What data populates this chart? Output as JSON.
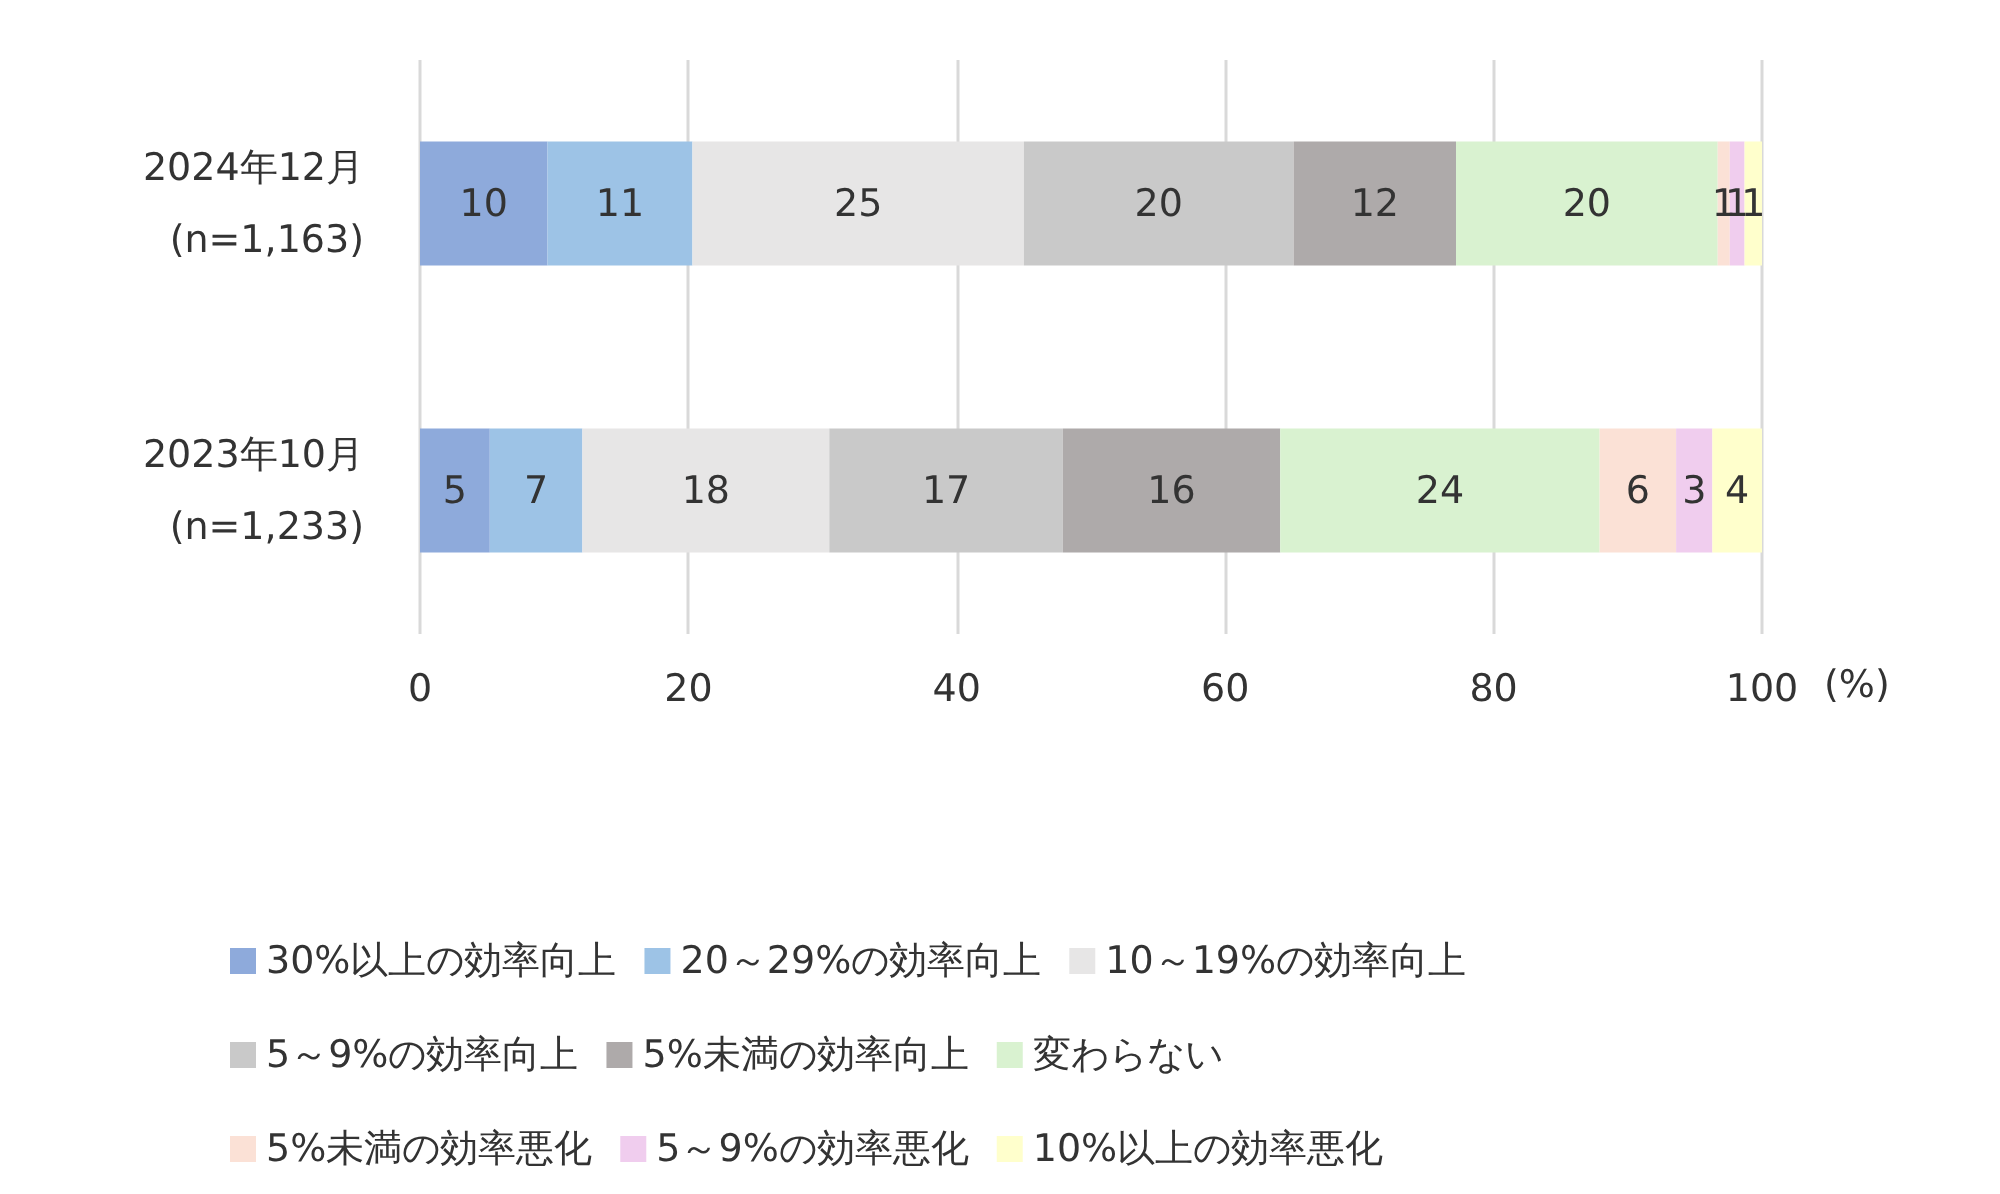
{
  "chart_data": {
    "type": "bar",
    "orientation": "horizontal",
    "stacked": true,
    "categories": [
      "2024年12月\n(n=1,163)",
      "2023年10月\n(n=1,233)"
    ],
    "xlabel": "(%)",
    "xlim": [
      0,
      100
    ],
    "xticks": [
      0,
      20,
      40,
      60,
      80,
      100
    ],
    "grid": "x",
    "legend": "bottom",
    "series": [
      {
        "name": "30%以上の効率向上",
        "color": "#8eaadb",
        "values": [
          9.5,
          5.2
        ],
        "value_labels": [
          "10",
          "5"
        ]
      },
      {
        "name": "20～29%の効率向上",
        "color": "#9dc3e6",
        "values": [
          10.8,
          6.9
        ],
        "value_labels": [
          "11",
          "7"
        ]
      },
      {
        "name": "10～19%の効率向上",
        "color": "#e7e6e6",
        "values": [
          24.7,
          18.4
        ],
        "value_labels": [
          "25",
          "18"
        ]
      },
      {
        "name": "5～9%の効率向上",
        "color": "#c9c9c9",
        "values": [
          20.1,
          17.4
        ],
        "value_labels": [
          "20",
          "17"
        ]
      },
      {
        "name": "5%未満の効率向上",
        "color": "#aeaaaa",
        "values": [
          12.1,
          16.2
        ],
        "value_labels": [
          "12",
          "16"
        ]
      },
      {
        "name": "変わらない",
        "color": "#d9f2d0",
        "values": [
          19.5,
          23.8
        ],
        "value_labels": [
          "20",
          "24"
        ]
      },
      {
        "name": "5%未満の効率悪化",
        "color": "#fbe1d6",
        "values": [
          0.9,
          5.7
        ],
        "value_labels": [
          "1",
          "6"
        ]
      },
      {
        "name": "5～9%の効率悪化",
        "color": "#f0cdee",
        "values": [
          1.1,
          2.7
        ],
        "value_labels": [
          "1",
          "3"
        ]
      },
      {
        "name": "10%以上の効率悪化",
        "color": "#ffffcc",
        "values": [
          1.3,
          3.7
        ],
        "value_labels": [
          "1",
          "4"
        ]
      }
    ]
  }
}
